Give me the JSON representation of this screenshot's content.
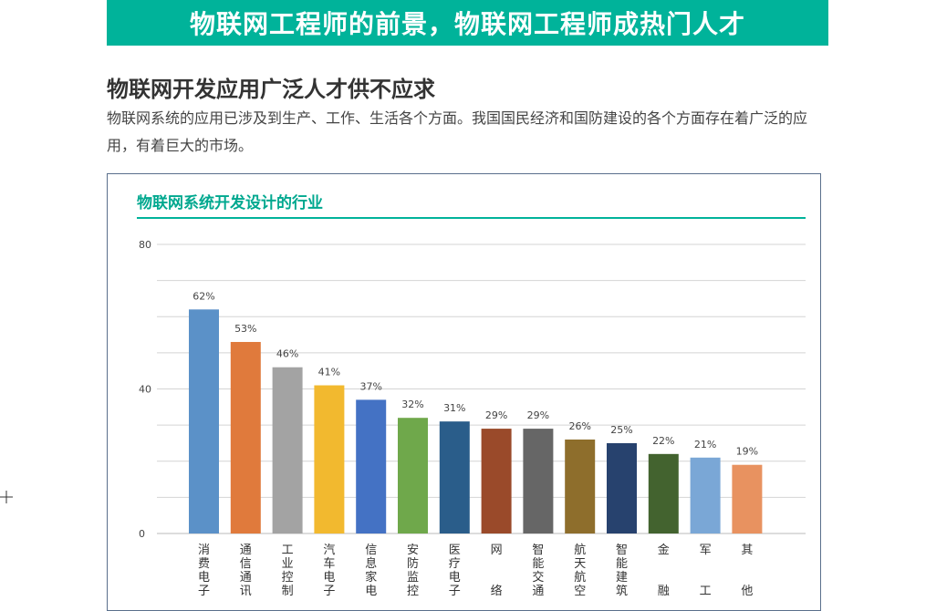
{
  "header": {
    "banner_title": "物联网工程师的前景，物联网工程师成热门人才"
  },
  "section": {
    "heading": "物联网开发应用广泛人才供不应求",
    "intro": "物联网系统的应用已涉及到生产、工作、生活各个方面。我国国民经济和国防建设的各个方面存在着广泛的应用，有着巨大的市场。"
  },
  "colors": {
    "banner": "#00b39a",
    "chart_title": "#00a88f",
    "chart_border": "#5a6f8c"
  },
  "chart_data": {
    "type": "bar",
    "title": "物联网系统开发设计的行业",
    "categories": [
      "消费电子",
      "通信通讯",
      "工业控制",
      "汽车电子",
      "信息家电",
      "安防监控",
      "医疗电子",
      "网络",
      "智能交通",
      "航天航空",
      "智能建筑",
      "金融",
      "军工",
      "其他"
    ],
    "category_lines": [
      [
        "消",
        "费",
        "电",
        "子"
      ],
      [
        "通",
        "信",
        "通",
        "讯"
      ],
      [
        "工",
        "业",
        "控",
        "制"
      ],
      [
        "汽",
        "车",
        "电",
        "子"
      ],
      [
        "信",
        "息",
        "家",
        "电"
      ],
      [
        "安",
        "防",
        "监",
        "控"
      ],
      [
        "医",
        "疗",
        "电",
        "子"
      ],
      [
        "网",
        "",
        "",
        "络"
      ],
      [
        "智",
        "能",
        "交",
        "通"
      ],
      [
        "航",
        "天",
        "航",
        "空"
      ],
      [
        "智",
        "能",
        "建",
        "筑"
      ],
      [
        "金",
        "",
        "",
        "融"
      ],
      [
        "军",
        "",
        "",
        "工"
      ],
      [
        "其",
        "",
        "",
        "他"
      ]
    ],
    "values": [
      62,
      53,
      46,
      41,
      37,
      32,
      31,
      29,
      29,
      26,
      25,
      22,
      21,
      19
    ],
    "data_labels": [
      "62%",
      "53%",
      "46%",
      "41%",
      "37%",
      "32%",
      "31%",
      "29%",
      "29%",
      "26%",
      "25%",
      "22%",
      "21%",
      "19%"
    ],
    "colors": [
      "#5b91c8",
      "#e07a3c",
      "#a3a3a3",
      "#f2b92f",
      "#4472c4",
      "#6fa84b",
      "#2a5d8a",
      "#9a4a2a",
      "#666666",
      "#8e6e2c",
      "#27426e",
      "#43632f",
      "#7aa7d6",
      "#e89260"
    ],
    "ylim": [
      0,
      80
    ],
    "yticks": [
      0,
      40,
      80
    ],
    "ytick_labels": [
      "0",
      "40",
      "80"
    ],
    "grid": true,
    "legend": "none"
  }
}
